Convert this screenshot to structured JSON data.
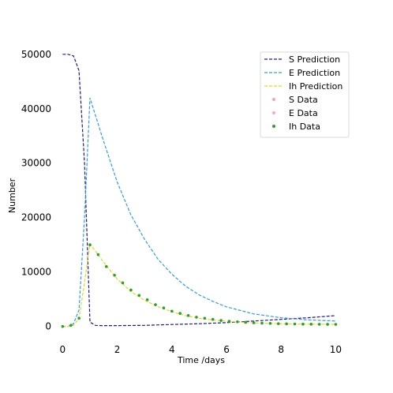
{
  "chart_data": {
    "type": "line",
    "xlabel": "Time /days",
    "ylabel": "Number",
    "xlim": [
      -0.3,
      10.45
    ],
    "ylim": [
      -1500,
      52000
    ],
    "xticks": [
      0,
      2,
      4,
      6,
      8,
      10
    ],
    "yticks": [
      0,
      10000,
      20000,
      30000,
      40000,
      50000
    ],
    "grid": false,
    "legend_placement": "top-right",
    "series": [
      {
        "name": "S Prediction",
        "kind": "line",
        "style": "dashed",
        "color": "#1a1a8c",
        "x": [
          0,
          0.2,
          0.4,
          0.6,
          0.8,
          1.0,
          1.2,
          1.4,
          1.6,
          2,
          3,
          4,
          5,
          6,
          7,
          8,
          9,
          10
        ],
        "y": [
          50000,
          50000,
          49700,
          47000,
          30000,
          800,
          200,
          150,
          150,
          150,
          200,
          350,
          500,
          700,
          1000,
          1300,
          1600,
          2000
        ]
      },
      {
        "name": "E Prediction",
        "kind": "line",
        "style": "dashed",
        "color": "#3399ee",
        "x": [
          0,
          0.2,
          0.4,
          0.6,
          0.8,
          1.0,
          1.5,
          2,
          2.5,
          3,
          3.5,
          4,
          4.5,
          5,
          5.5,
          6,
          7,
          8,
          9,
          10
        ],
        "y": [
          0,
          0,
          500,
          3000,
          20000,
          42000,
          34000,
          26500,
          20500,
          16000,
          12300,
          9600,
          7400,
          5800,
          4600,
          3600,
          2300,
          1600,
          1200,
          1000
        ]
      },
      {
        "name": "Ih Prediction",
        "kind": "line",
        "style": "dashed",
        "color": "#e6d820",
        "x": [
          0,
          0.2,
          0.4,
          0.6,
          0.8,
          1.0,
          1.5,
          2,
          2.5,
          3,
          3.5,
          4,
          4.5,
          5,
          5.5,
          6,
          7,
          8,
          9,
          10
        ],
        "y": [
          0,
          0,
          200,
          1500,
          8000,
          15200,
          11800,
          8700,
          6400,
          4800,
          3600,
          2700,
          2000,
          1500,
          1200,
          950,
          650,
          500,
          420,
          380
        ]
      },
      {
        "name": "S Data",
        "kind": "scatter",
        "color": "#f4a6a6",
        "x": [],
        "y": []
      },
      {
        "name": "E Data",
        "kind": "scatter",
        "color": "#f4a6d8",
        "x": [],
        "y": []
      },
      {
        "name": "Ih Data",
        "kind": "scatter",
        "color": "#2ca02c",
        "x": [
          0,
          0.3,
          0.6,
          1.0,
          1.3,
          1.6,
          1.9,
          2.2,
          2.5,
          2.8,
          3.1,
          3.4,
          3.7,
          4.0,
          4.3,
          4.6,
          4.9,
          5.2,
          5.5,
          5.8,
          6.1,
          6.4,
          6.7,
          7.0,
          7.3,
          7.6,
          7.9,
          8.2,
          8.5,
          8.8,
          9.1,
          9.4,
          9.7,
          10.0
        ],
        "y": [
          0,
          200,
          1500,
          15000,
          13200,
          11000,
          9400,
          8000,
          6700,
          5700,
          4900,
          4000,
          3400,
          2800,
          2400,
          2000,
          1700,
          1500,
          1300,
          1100,
          950,
          850,
          750,
          680,
          610,
          560,
          510,
          480,
          450,
          430,
          410,
          400,
          390,
          380
        ]
      }
    ]
  }
}
